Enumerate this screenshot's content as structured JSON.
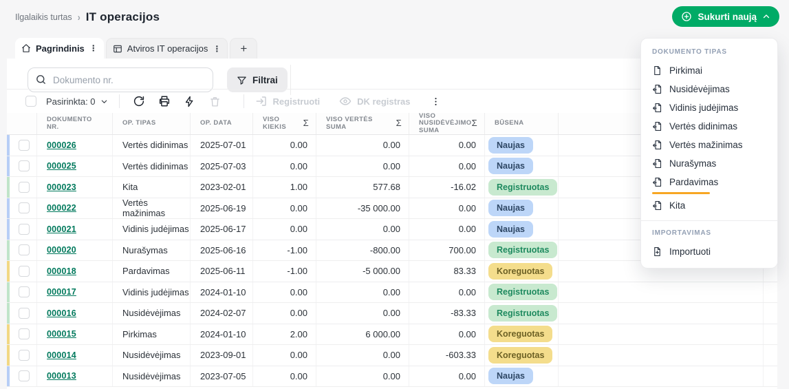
{
  "breadcrumb": {
    "parent": "Ilgalaikis turtas",
    "current": "IT operacijos"
  },
  "create_button": {
    "label": "Sukurti naują",
    "icon": "circle-plus-icon",
    "state": "open"
  },
  "tabs": [
    {
      "label": "Pagrindinis",
      "icon": "home-icon",
      "active": true
    },
    {
      "label": "Atviros IT operacijos",
      "icon": "table-icon",
      "active": false
    }
  ],
  "new_tab_label": "+",
  "search": {
    "placeholder": "Dokumento nr."
  },
  "filters": {
    "label": "Filtrai"
  },
  "toolbar": {
    "selected_label": "Pasirinkta: 0",
    "register_label": "Registruoti",
    "dk_label": "DK registras"
  },
  "table": {
    "headers": [
      {
        "label": "DOKUMENTO NR.",
        "sigma": false
      },
      {
        "label": "OP. TIPAS",
        "sigma": false
      },
      {
        "label": "OP. DATA",
        "sigma": false
      },
      {
        "label": "VISO KIEKIS",
        "sigma": true
      },
      {
        "label": "VISO VERTĖS SUMA",
        "sigma": true
      },
      {
        "label": "VISO NUSIDĖVĖJIMO SUMA",
        "sigma": true
      },
      {
        "label": "BŪSENA",
        "sigma": false
      }
    ],
    "rows": [
      {
        "doc": "000026",
        "type": "Vertės didinimas",
        "date": "2025-07-01",
        "qty": "0.00",
        "value": "0.00",
        "depr": "0.00",
        "status": "Naujas",
        "kind": "new"
      },
      {
        "doc": "000025",
        "type": "Vertės didinimas",
        "date": "2025-07-03",
        "qty": "0.00",
        "value": "0.00",
        "depr": "0.00",
        "status": "Naujas",
        "kind": "new"
      },
      {
        "doc": "000023",
        "type": "Kita",
        "date": "2023-02-01",
        "qty": "1.00",
        "value": "577.68",
        "depr": "-16.02",
        "status": "Registruotas",
        "kind": "registered"
      },
      {
        "doc": "000022",
        "type": "Vertės mažinimas",
        "date": "2025-06-19",
        "qty": "0.00",
        "value": "-35 000.00",
        "depr": "0.00",
        "status": "Naujas",
        "kind": "new"
      },
      {
        "doc": "000021",
        "type": "Vidinis judėjimas",
        "date": "2025-06-17",
        "qty": "0.00",
        "value": "0.00",
        "depr": "0.00",
        "status": "Naujas",
        "kind": "new"
      },
      {
        "doc": "000020",
        "type": "Nurašymas",
        "date": "2025-06-16",
        "qty": "-1.00",
        "value": "-800.00",
        "depr": "700.00",
        "status": "Registruotas",
        "kind": "registered"
      },
      {
        "doc": "000018",
        "type": "Pardavimas",
        "date": "2025-06-11",
        "qty": "-1.00",
        "value": "-5 000.00",
        "depr": "83.33",
        "status": "Koreguotas",
        "kind": "adjusted"
      },
      {
        "doc": "000017",
        "type": "Vidinis judėjimas",
        "date": "2024-01-10",
        "qty": "0.00",
        "value": "0.00",
        "depr": "0.00",
        "status": "Registruotas",
        "kind": "registered"
      },
      {
        "doc": "000016",
        "type": "Nusidėvėjimas",
        "date": "2024-02-07",
        "qty": "0.00",
        "value": "0.00",
        "depr": "-83.33",
        "status": "Registruotas",
        "kind": "registered"
      },
      {
        "doc": "000015",
        "type": "Pirkimas",
        "date": "2024-01-10",
        "qty": "2.00",
        "value": "6 000.00",
        "depr": "0.00",
        "status": "Koreguotas",
        "kind": "adjusted"
      },
      {
        "doc": "000014",
        "type": "Nusidėvėjimas",
        "date": "2023-09-01",
        "qty": "0.00",
        "value": "0.00",
        "depr": "-603.33",
        "status": "Koreguotas",
        "kind": "adjusted"
      },
      {
        "doc": "000013",
        "type": "Nusidėvėjimas",
        "date": "2023-07-05",
        "qty": "0.00",
        "value": "0.00",
        "depr": "0.00",
        "status": "Naujas",
        "kind": "new"
      }
    ]
  },
  "menu": {
    "section_documents": "DOKUMENTO TIPAS",
    "items": [
      {
        "label": "Pirkimai",
        "icon": "document-icon"
      },
      {
        "label": "Nusidėvėjimas",
        "icon": "document-arrow-icon"
      },
      {
        "label": "Vidinis judėjimas",
        "icon": "document-arrow-icon"
      },
      {
        "label": "Vertės didinimas",
        "icon": "document-arrow-icon"
      },
      {
        "label": "Vertės mažinimas",
        "icon": "document-arrow-icon"
      },
      {
        "label": "Nurašymas",
        "icon": "document-arrow-icon"
      },
      {
        "label": "Pardavimas",
        "icon": "document-arrow-icon"
      },
      {
        "label": "Kita",
        "icon": "document-arrow-icon"
      }
    ],
    "highlighted_item": "Pardavimas",
    "section_import": "IMPORTAVIMAS",
    "import_item": {
      "label": "Importuoti",
      "icon": "document-plus-icon"
    }
  },
  "colors": {
    "accent_green": "#00ab66",
    "highlight_orange": "#f7a623",
    "link_green": "#00795c",
    "badge_new_bg": "#bdd6f8",
    "badge_registered_bg": "#c8e9cf",
    "badge_adjusted_bg": "#f4dd8c"
  }
}
